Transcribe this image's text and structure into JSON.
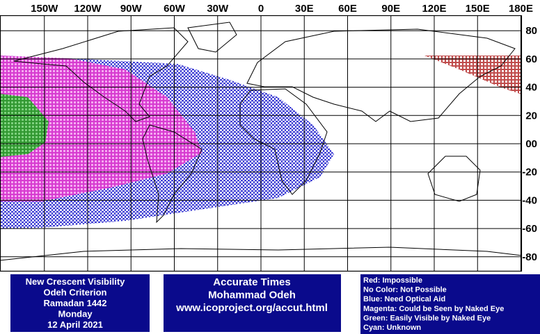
{
  "map": {
    "longitude_labels": [
      {
        "value": -150,
        "label": "150W"
      },
      {
        "value": -120,
        "label": "120W"
      },
      {
        "value": -90,
        "label": "90W"
      },
      {
        "value": -60,
        "label": "60W"
      },
      {
        "value": -30,
        "label": "30W"
      },
      {
        "value": 0,
        "label": "0"
      },
      {
        "value": 30,
        "label": "30E"
      },
      {
        "value": 60,
        "label": "60E"
      },
      {
        "value": 90,
        "label": "90E"
      },
      {
        "value": 120,
        "label": "120E"
      },
      {
        "value": 150,
        "label": "150E"
      },
      {
        "value": 180,
        "label": "180E"
      }
    ],
    "latitude_labels": [
      {
        "value": 80,
        "label": "80"
      },
      {
        "value": 60,
        "label": "60"
      },
      {
        "value": 40,
        "label": "40"
      },
      {
        "value": 20,
        "label": "20"
      },
      {
        "value": 0,
        "label": "00"
      },
      {
        "value": -20,
        "label": "-20"
      },
      {
        "value": -40,
        "label": "-40"
      },
      {
        "value": -60,
        "label": "-60"
      },
      {
        "value": -80,
        "label": "-80"
      }
    ]
  },
  "boxes": {
    "visibility": [
      "New Crescent Visibility",
      "Odeh Criterion",
      "Ramadan 1442",
      "Monday",
      "12 April 2021"
    ],
    "credits": [
      "Accurate Times",
      "Mohammad Odeh",
      "www.icoproject.org/accut.html"
    ],
    "legend": [
      "Red: Impossible",
      "No Color: Not Possible",
      "Blue: Need Optical Aid",
      "Magenta: Could be Seen by Naked Eye",
      "Green: Easily Visible by Naked Eye",
      "Cyan: Unknown"
    ]
  }
}
